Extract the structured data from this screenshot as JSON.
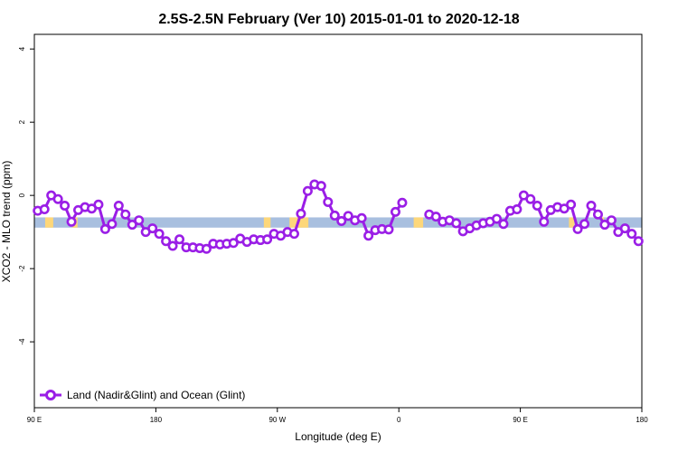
{
  "chart_data": {
    "type": "line",
    "title": "2.5S-2.5N February (Ver 10)   2015-01-01 to 2020-12-18",
    "xlabel": "Longitude (deg E)",
    "ylabel": "XCO2 - MLO trend (ppm)",
    "xlim": [
      90,
      540
    ],
    "ylim": [
      -5.8,
      4.4
    ],
    "x_ticks": [
      {
        "value": 90,
        "label": "90 E"
      },
      {
        "value": 180,
        "label": "180"
      },
      {
        "value": 270,
        "label": "90 W"
      },
      {
        "value": 360,
        "label": "0"
      },
      {
        "value": 450,
        "label": "90 E"
      },
      {
        "value": 540,
        "label": "180"
      }
    ],
    "y_ticks": [
      {
        "value": 4,
        "label": "4"
      },
      {
        "value": 2,
        "label": "2"
      },
      {
        "value": 0,
        "label": "0"
      },
      {
        "value": -2,
        "label": "-2"
      },
      {
        "value": -4,
        "label": "-4"
      }
    ],
    "surface_band": {
      "y_range": [
        -0.88,
        -0.6
      ],
      "ocean_color": "#a8bfdf",
      "land_color": "#fdd77a",
      "land_segments": [
        [
          98,
          104
        ],
        [
          118,
          122
        ],
        [
          260,
          265
        ],
        [
          279,
          293
        ],
        [
          371,
          378
        ],
        [
          486,
          490
        ],
        [
          510,
          512
        ]
      ]
    },
    "series": [
      {
        "name": "Land (Nadir&Glint) and Ocean (Glint)",
        "color": "#9a1ee6",
        "segments": [
          {
            "x": [
              92.5,
              97.5,
              102.5,
              107.5,
              112.5,
              117.5,
              122.5,
              127.5,
              132.5,
              137.5,
              142.5,
              147.5,
              152.5,
              157.5,
              162.5,
              167.5,
              172.5,
              177.5,
              182.5,
              187.5,
              192.5,
              197.5,
              202.5,
              207.5,
              212.5,
              217.5,
              222.5,
              227.5,
              232.5,
              237.5,
              242.5,
              247.5,
              252.5,
              257.5,
              262.5,
              267.5,
              272.5,
              277.5,
              282.5,
              287.5,
              292.5,
              297.5,
              302.5,
              307.5,
              312.5,
              317.5,
              322.5,
              327.5,
              332.5,
              337.5,
              342.5,
              347.5,
              352.5,
              357.5,
              362.5
            ],
            "y": [
              -0.42,
              -0.38,
              0.0,
              -0.1,
              -0.28,
              -0.72,
              -0.4,
              -0.32,
              -0.36,
              -0.25,
              -0.92,
              -0.78,
              -0.28,
              -0.52,
              -0.8,
              -0.68,
              -1.0,
              -0.9,
              -1.05,
              -1.25,
              -1.38,
              -1.2,
              -1.42,
              -1.42,
              -1.44,
              -1.46,
              -1.32,
              -1.34,
              -1.32,
              -1.3,
              -1.18,
              -1.27,
              -1.2,
              -1.22,
              -1.2,
              -1.05,
              -1.1,
              -1.0,
              -1.05,
              -0.5,
              0.12,
              0.3,
              0.26,
              -0.18,
              -0.55,
              -0.7,
              -0.56,
              -0.68,
              -0.62,
              -1.1,
              -0.95,
              -0.92,
              -0.93,
              -0.45,
              -0.2
            ]
          },
          {
            "x": [
              382.5,
              387.5,
              392.5,
              397.5,
              402.5,
              407.5,
              412.5,
              417.5,
              422.5,
              427.5,
              432.5,
              437.5,
              442.5,
              447.5,
              452.5,
              457.5,
              462.5,
              467.5,
              472.5,
              477.5,
              482.5,
              487.5,
              492.5,
              497.5,
              502.5,
              507.5,
              512.5,
              517.5,
              522.5,
              527.5,
              532.5,
              537.5
            ],
            "y": [
              -0.52,
              -0.58,
              -0.72,
              -0.68,
              -0.76,
              -0.98,
              -0.9,
              -0.82,
              -0.76,
              -0.72,
              -0.64,
              -0.78,
              -0.42,
              -0.38,
              0.0,
              -0.1,
              -0.28,
              -0.72,
              -0.4,
              -0.32,
              -0.36,
              -0.25,
              -0.92,
              -0.78,
              -0.28,
              -0.52,
              -0.8,
              -0.68,
              -1.0,
              -0.9,
              -1.05,
              -1.25
            ]
          }
        ]
      }
    ],
    "legend": {
      "position": "bottom-left"
    },
    "grid": false
  }
}
